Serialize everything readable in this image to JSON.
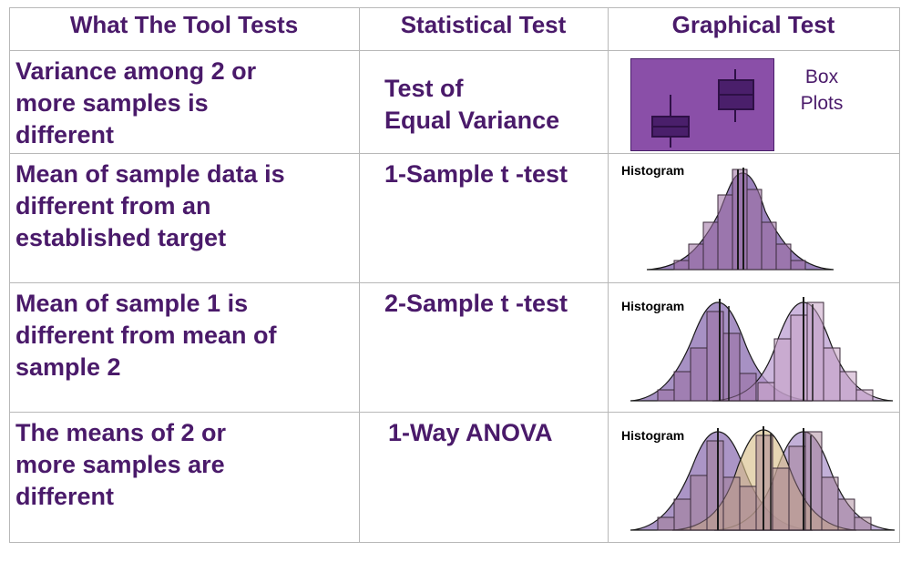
{
  "headers": {
    "tool": "What The Tool Tests",
    "statistical": "Statistical Test",
    "graphical": "Graphical Test"
  },
  "rows": [
    {
      "tool": "Variance among 2 or\nmore samples is\ndifferent",
      "statistical": "Test of\nEqual Variance",
      "graph_label": "Box\nPlots"
    },
    {
      "tool": "Mean of sample data is\ndifferent from an\nestablished target",
      "statistical": "1-Sample t -test",
      "graph_label": "Histogram"
    },
    {
      "tool": "Mean of sample 1 is\ndifferent from mean of\nsample 2",
      "statistical": "2-Sample t -test",
      "graph_label": "Histogram"
    },
    {
      "tool": "The means of 2 or\nmore samples are\ndifferent",
      "statistical": "1-Way ANOVA",
      "graph_label": "Histogram"
    }
  ],
  "colors": {
    "text": "#4a1a6a",
    "boxplot_background": "#8a4fa8",
    "boxplot_box": "#4a1f6b",
    "curve_purple": "#7b5aa6",
    "curve_tan": "#d9c08c",
    "grid": "#b8b8b8"
  },
  "icons": [
    "box-plot-graphic",
    "histogram-graphic"
  ]
}
